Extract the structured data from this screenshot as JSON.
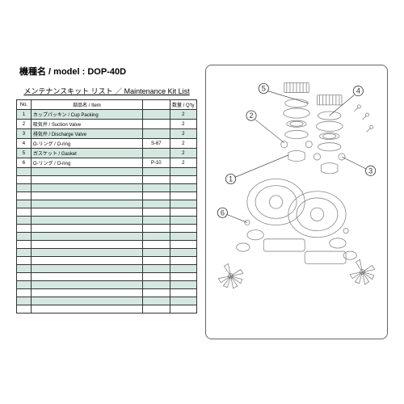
{
  "header": {
    "model_label": "機種名 / model :",
    "model_value": "DOP-40D",
    "list_title": "メンテナンスキット リスト ／ Maintenance Kit List"
  },
  "table": {
    "columns": {
      "no": "No.",
      "item": "部品名 / Item",
      "spec": "",
      "qty": "数量 / Q'ty"
    },
    "rows": [
      {
        "no": "1",
        "item": "カップパッキン / Cup Packing",
        "spec": "",
        "qty": "2",
        "highlight": true
      },
      {
        "no": "2",
        "item": "吸気弁 / Suction Valve",
        "spec": "",
        "qty": "2",
        "highlight": false
      },
      {
        "no": "3",
        "item": "排気弁 / Discharge Valve",
        "spec": "",
        "qty": "2",
        "highlight": true
      },
      {
        "no": "4",
        "item": "O-リング / O-ring",
        "spec": "S-67",
        "qty": "2",
        "highlight": false
      },
      {
        "no": "5",
        "item": "ガスケット / Gasket",
        "spec": "",
        "qty": "2",
        "highlight": true
      },
      {
        "no": "6",
        "item": "O-リング / O-ring",
        "spec": "P-10",
        "qty": "2",
        "highlight": false
      }
    ],
    "empty_rows": 18,
    "colors": {
      "highlight_bg": "#d4e8e0",
      "normal_bg": "#ffffff",
      "border": "#333333"
    }
  },
  "diagram": {
    "callouts": [
      "1",
      "2",
      "3",
      "4",
      "5",
      "6"
    ],
    "line_color": "#888888",
    "text_color": "#333333"
  }
}
